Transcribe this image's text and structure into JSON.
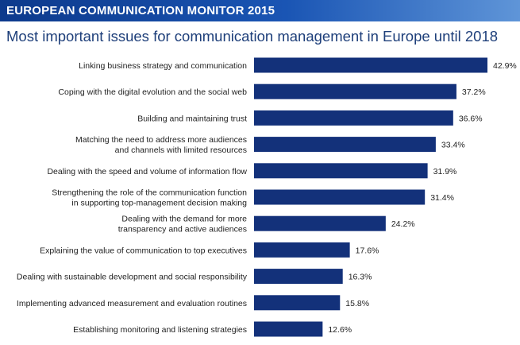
{
  "header": {
    "banner": "EUROPEAN COMMUNICATION MONITOR 2015"
  },
  "colors": {
    "bar": "#13317a",
    "banner_start": "#0d3a8c",
    "banner_end": "#5f95d8",
    "title": "#1e3f7a"
  },
  "chart_data": {
    "type": "bar",
    "orientation": "horizontal",
    "title": "Most important issues for communication management in Europe until 2018",
    "xlabel": "",
    "ylabel": "",
    "xlim": [
      0,
      42.9
    ],
    "grid": false,
    "legend": "none",
    "categories": [
      [
        "Linking business strategy and communication"
      ],
      [
        "Coping with the digital evolution and the social web"
      ],
      [
        "Building and maintaining trust"
      ],
      [
        "Matching the need to address more audiences",
        "and channels with limited resources"
      ],
      [
        "Dealing with the speed and volume of information flow"
      ],
      [
        "Strengthening the role of the communication function",
        "in supporting top-management decision making"
      ],
      [
        "Dealing with the demand for more",
        "transparency and active audiences"
      ],
      [
        "Explaining the value of communication to top executives"
      ],
      [
        "Dealing with sustainable development and social responsibility"
      ],
      [
        "Implementing advanced measurement and evaluation routines"
      ],
      [
        "Establishing monitoring and listening strategies"
      ]
    ],
    "values": [
      42.9,
      37.2,
      36.6,
      33.4,
      31.9,
      31.4,
      24.2,
      17.6,
      16.3,
      15.8,
      12.6
    ],
    "value_labels": [
      "42.9%",
      "37.2%",
      "36.6%",
      "33.4%",
      "31.9%",
      "31.4%",
      "24.2%",
      "17.6%",
      "16.3%",
      "15.8%",
      "12.6%"
    ]
  }
}
